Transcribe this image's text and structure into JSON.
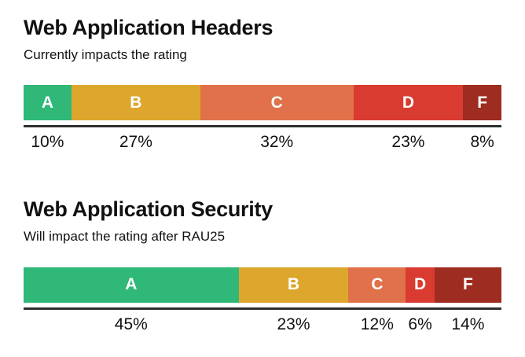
{
  "charts": [
    {
      "title": "Web Application Headers",
      "subtitle": "Currently impacts the rating",
      "segments": [
        {
          "grade": "A",
          "pct": 10,
          "label": "10%",
          "color": "#2FB877"
        },
        {
          "grade": "B",
          "pct": 27,
          "label": "27%",
          "color": "#DDA72D"
        },
        {
          "grade": "C",
          "pct": 32,
          "label": "32%",
          "color": "#E0714A"
        },
        {
          "grade": "D",
          "pct": 23,
          "label": "23%",
          "color": "#D93B30"
        },
        {
          "grade": "F",
          "pct": 8,
          "label": "8%",
          "color": "#9E2C20"
        }
      ]
    },
    {
      "title": "Web Application Security",
      "subtitle": "Will impact the rating after RAU25",
      "segments": [
        {
          "grade": "A",
          "pct": 45,
          "label": "45%",
          "color": "#2FB877"
        },
        {
          "grade": "B",
          "pct": 23,
          "label": "23%",
          "color": "#DDA72D"
        },
        {
          "grade": "C",
          "pct": 12,
          "label": "12%",
          "color": "#E0714A"
        },
        {
          "grade": "D",
          "pct": 6,
          "label": "6%",
          "color": "#D93B30"
        },
        {
          "grade": "F",
          "pct": 14,
          "label": "14%",
          "color": "#9E2C20"
        }
      ]
    }
  ],
  "chart_data": [
    {
      "type": "bar",
      "subtype": "horizontal-stacked-100pct",
      "title": "Web Application Headers",
      "subtitle": "Currently impacts the rating",
      "categories": [
        "A",
        "B",
        "C",
        "D",
        "F"
      ],
      "values": [
        10,
        27,
        32,
        23,
        8
      ],
      "unit": "%",
      "colors": [
        "#2FB877",
        "#DDA72D",
        "#E0714A",
        "#D93B30",
        "#9E2C20"
      ],
      "xlim": [
        0,
        100
      ],
      "grid": false,
      "legend": false,
      "data_labels": "below-bar"
    },
    {
      "type": "bar",
      "subtype": "horizontal-stacked-100pct",
      "title": "Web Application Security",
      "subtitle": "Will impact the rating after RAU25",
      "categories": [
        "A",
        "B",
        "C",
        "D",
        "F"
      ],
      "values": [
        45,
        23,
        12,
        6,
        14
      ],
      "unit": "%",
      "colors": [
        "#2FB877",
        "#DDA72D",
        "#E0714A",
        "#D93B30",
        "#9E2C20"
      ],
      "xlim": [
        0,
        100
      ],
      "grid": false,
      "legend": false,
      "data_labels": "below-bar"
    }
  ]
}
